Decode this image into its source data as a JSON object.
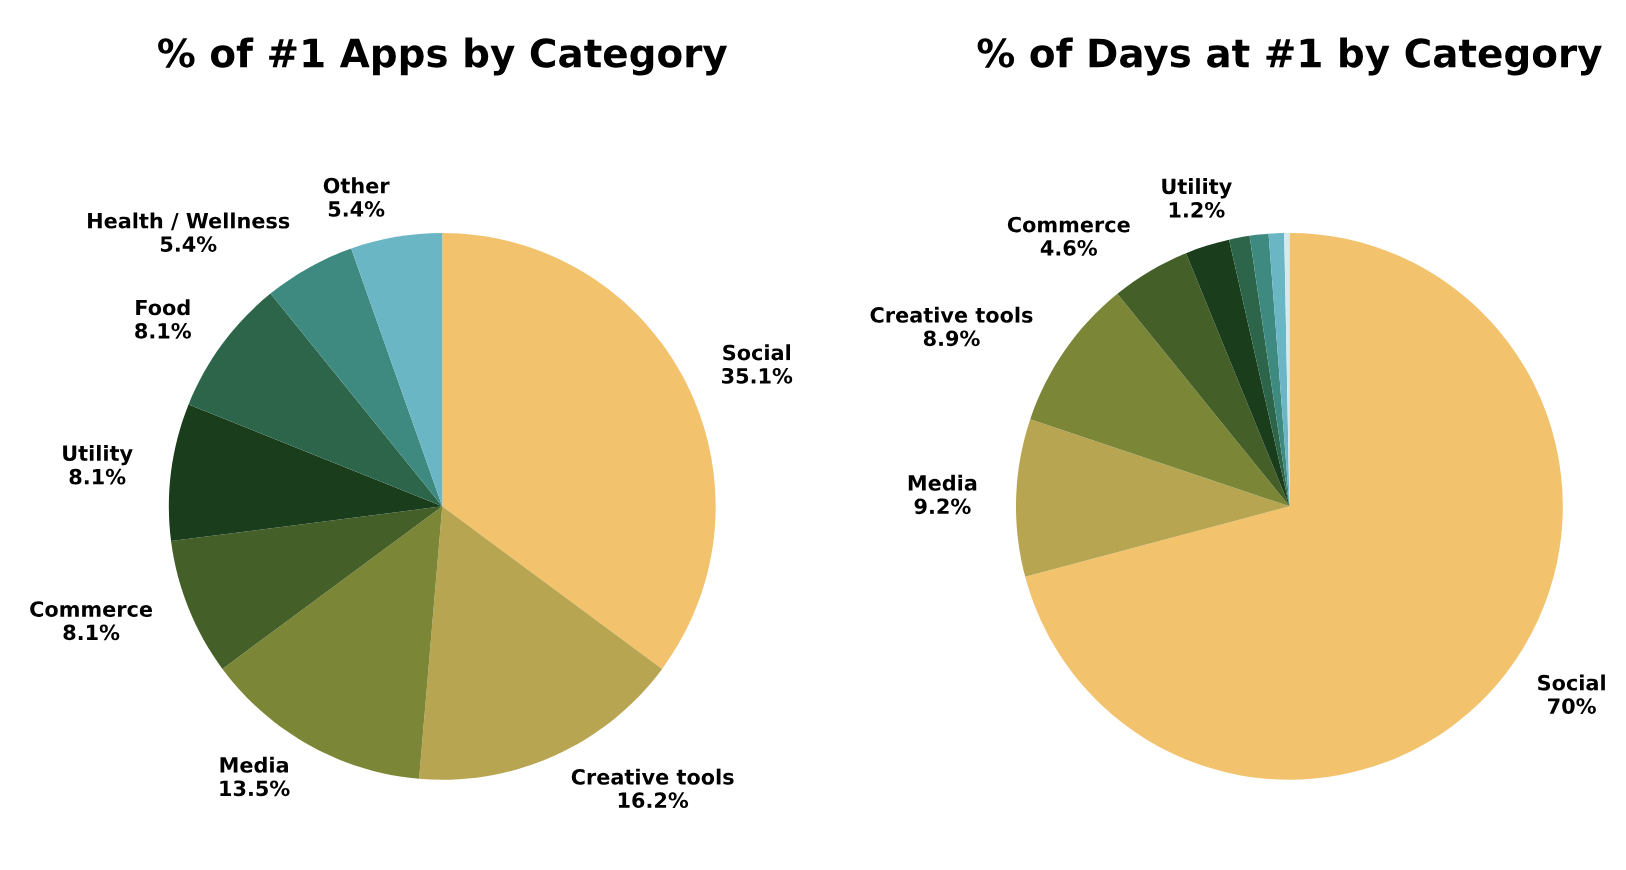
{
  "chart_data": [
    {
      "type": "pie",
      "title": "% of #1 Apps by Category",
      "categories": [
        "Social",
        "Creative tools",
        "Media",
        "Commerce",
        "Utility",
        "Food",
        "Health / Wellness",
        "Other"
      ],
      "values": [
        35.1,
        16.2,
        13.5,
        8.1,
        8.1,
        8.1,
        5.4,
        5.4
      ],
      "value_labels": [
        "35.1%",
        "16.2%",
        "13.5%",
        "8.1%",
        "8.1%",
        "8.1%",
        "5.4%",
        "5.4%"
      ],
      "colors": [
        "#f3c26c",
        "#b8a552",
        "#7b8636",
        "#455f28",
        "#1a3d1c",
        "#2c654a",
        "#3f8a80",
        "#6ab6c4"
      ]
    },
    {
      "type": "pie",
      "title": "% of Days at #1 by Category",
      "categories": [
        "Social",
        "Media",
        "Creative tools",
        "Commerce",
        null,
        "Utility",
        null,
        null,
        null
      ],
      "values": [
        70,
        9.2,
        8.9,
        4.6,
        2.6,
        1.2,
        1.1,
        0.9,
        0.3
      ],
      "value_labels": [
        "70%",
        "9.2%",
        "8.9%",
        "4.6%",
        null,
        "1.2%",
        null,
        null,
        null
      ],
      "colors": [
        "#f3c26c",
        "#b8a552",
        "#7b8636",
        "#455f28",
        "#1a3d1c",
        "#2c654a",
        "#3f8a80",
        "#6ab6c4",
        "#d6e9ec"
      ]
    }
  ]
}
